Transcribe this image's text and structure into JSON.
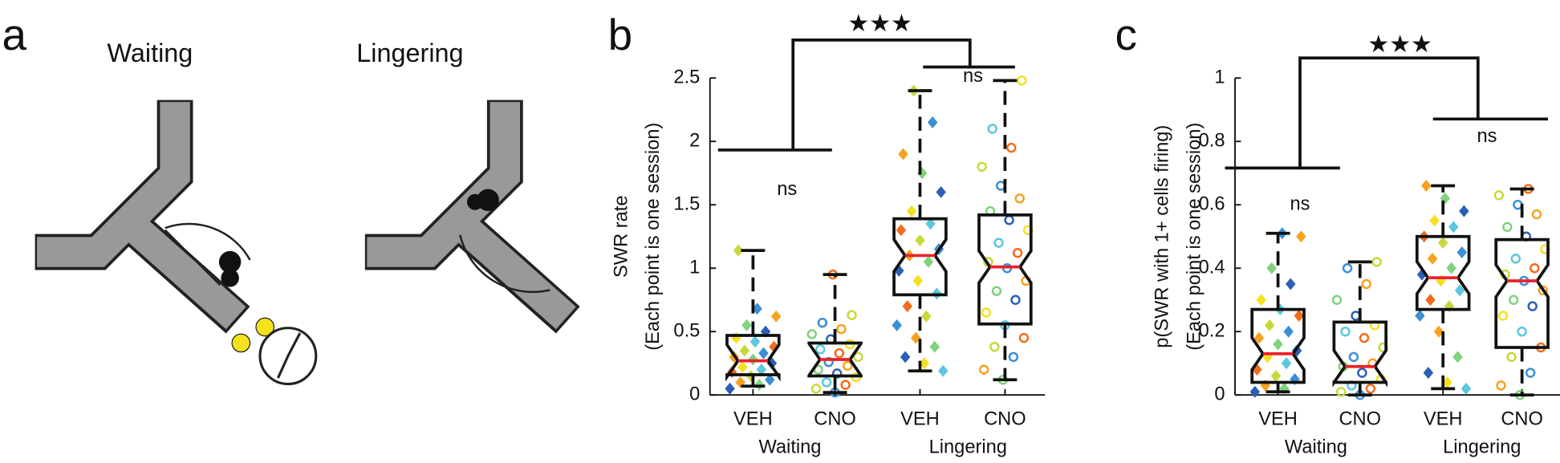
{
  "panel_a": {
    "label": "a",
    "titles": [
      "Waiting",
      "Lingering"
    ]
  },
  "chart_data": [
    {
      "type": "box",
      "label": "b",
      "ylabel": [
        "SWR rate",
        "(Each point is one session)"
      ],
      "categories": [
        "VEH",
        "CNO",
        "VEH",
        "CNO"
      ],
      "groups": [
        "Waiting",
        "Lingering"
      ],
      "ylim": [
        0,
        2.5
      ],
      "yticks": [
        0,
        0.5,
        1,
        1.5,
        2,
        2.5
      ],
      "annotations": [
        "ns",
        "ns",
        "★★★"
      ],
      "palette": [
        "#2b5fb4",
        "#3a8fd6",
        "#5bc7e0",
        "#7fd37a",
        "#c8d83a",
        "#f4e020",
        "#f7a21e",
        "#f26b1d"
      ],
      "median_color": "#e8222a",
      "boxes": [
        {
          "marker": "diamond",
          "whisker_low": 0.07,
          "q1": 0.16,
          "median": 0.27,
          "q3": 0.47,
          "whisker_high": 1.14,
          "points": [
            0.05,
            0.08,
            0.1,
            0.12,
            0.15,
            0.18,
            0.2,
            0.22,
            0.25,
            0.28,
            0.3,
            0.33,
            0.35,
            0.38,
            0.42,
            0.45,
            0.5,
            0.55,
            0.62,
            0.68,
            1.14
          ]
        },
        {
          "marker": "circle",
          "whisker_low": 0.02,
          "q1": 0.15,
          "median": 0.28,
          "q3": 0.41,
          "whisker_high": 0.95,
          "points": [
            0.02,
            0.05,
            0.08,
            0.1,
            0.14,
            0.17,
            0.2,
            0.23,
            0.26,
            0.3,
            0.33,
            0.36,
            0.4,
            0.44,
            0.48,
            0.52,
            0.57,
            0.63,
            0.95
          ]
        },
        {
          "marker": "diamond",
          "whisker_low": 0.19,
          "q1": 0.79,
          "median": 1.1,
          "q3": 1.39,
          "whisker_high": 2.4,
          "points": [
            0.19,
            0.25,
            0.3,
            0.38,
            0.45,
            0.55,
            0.62,
            0.7,
            0.8,
            0.9,
            0.98,
            1.05,
            1.1,
            1.15,
            1.22,
            1.3,
            1.35,
            1.45,
            1.6,
            1.75,
            1.9,
            2.15,
            2.4
          ]
        },
        {
          "marker": "circle",
          "whisker_low": 0.12,
          "q1": 0.56,
          "median": 1.01,
          "q3": 1.42,
          "whisker_high": 2.48,
          "points": [
            0.12,
            0.2,
            0.3,
            0.38,
            0.45,
            0.55,
            0.65,
            0.75,
            0.82,
            0.9,
            1.0,
            1.05,
            1.12,
            1.2,
            1.3,
            1.38,
            1.45,
            1.55,
            1.65,
            1.8,
            1.95,
            2.1,
            2.48
          ]
        }
      ]
    },
    {
      "type": "box",
      "label": "c",
      "ylabel": [
        "p(SWR with 1+ cells firing)",
        "(Each point is one session)"
      ],
      "categories": [
        "VEH",
        "CNO",
        "VEH",
        "CNO"
      ],
      "groups": [
        "Waiting",
        "Lingering"
      ],
      "ylim": [
        0,
        1
      ],
      "yticks": [
        0,
        0.2,
        0.4,
        0.6,
        0.8,
        1
      ],
      "annotations": [
        "ns",
        "ns",
        "★★★"
      ],
      "palette": [
        "#2b5fb4",
        "#3a8fd6",
        "#5bc7e0",
        "#7fd37a",
        "#c8d83a",
        "#f4e020",
        "#f7a21e",
        "#f26b1d"
      ],
      "median_color": "#e8222a",
      "boxes": [
        {
          "marker": "diamond",
          "whisker_low": 0.01,
          "q1": 0.04,
          "median": 0.13,
          "q3": 0.27,
          "whisker_high": 0.51,
          "points": [
            0.01,
            0.02,
            0.03,
            0.05,
            0.06,
            0.08,
            0.1,
            0.12,
            0.14,
            0.16,
            0.18,
            0.2,
            0.22,
            0.25,
            0.27,
            0.3,
            0.35,
            0.4,
            0.5,
            0.51
          ]
        },
        {
          "marker": "circle",
          "whisker_low": 0,
          "q1": 0.04,
          "median": 0.09,
          "q3": 0.23,
          "whisker_high": 0.42,
          "points": [
            0,
            0.01,
            0.02,
            0.03,
            0.05,
            0.07,
            0.09,
            0.1,
            0.12,
            0.15,
            0.18,
            0.2,
            0.22,
            0.25,
            0.3,
            0.35,
            0.4,
            0.42
          ]
        },
        {
          "marker": "diamond",
          "whisker_low": 0.02,
          "q1": 0.27,
          "median": 0.37,
          "q3": 0.5,
          "whisker_high": 0.66,
          "points": [
            0.02,
            0.04,
            0.07,
            0.12,
            0.2,
            0.25,
            0.28,
            0.3,
            0.33,
            0.36,
            0.38,
            0.4,
            0.43,
            0.45,
            0.48,
            0.5,
            0.53,
            0.55,
            0.58,
            0.62,
            0.66
          ]
        },
        {
          "marker": "circle",
          "whisker_low": 0,
          "q1": 0.15,
          "median": 0.36,
          "q3": 0.49,
          "whisker_high": 0.65,
          "points": [
            0,
            0.03,
            0.07,
            0.12,
            0.15,
            0.2,
            0.25,
            0.28,
            0.3,
            0.33,
            0.36,
            0.38,
            0.4,
            0.43,
            0.46,
            0.5,
            0.53,
            0.57,
            0.6,
            0.63,
            0.65
          ]
        }
      ]
    }
  ]
}
